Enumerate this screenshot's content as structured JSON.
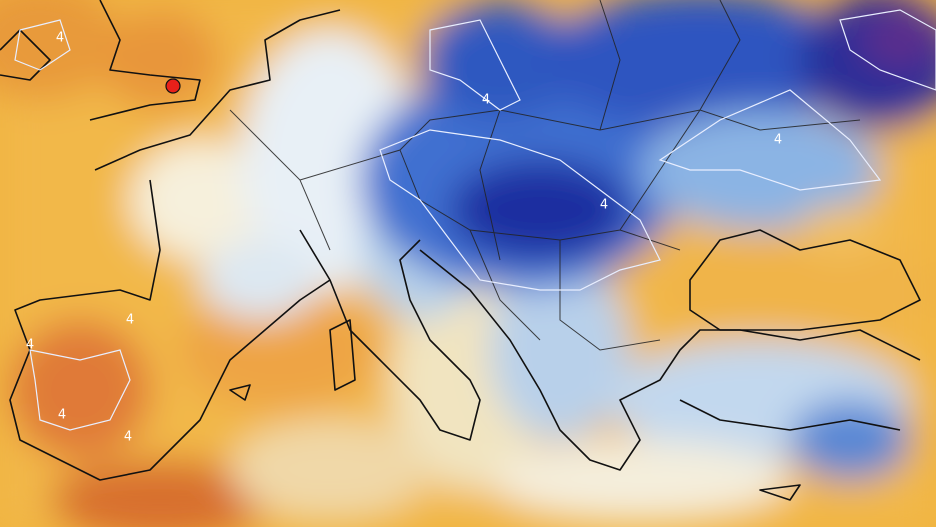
{
  "map": {
    "contour_labels": [
      "4",
      "4",
      "4",
      "4",
      "4",
      "4",
      "4",
      "4"
    ]
  }
}
